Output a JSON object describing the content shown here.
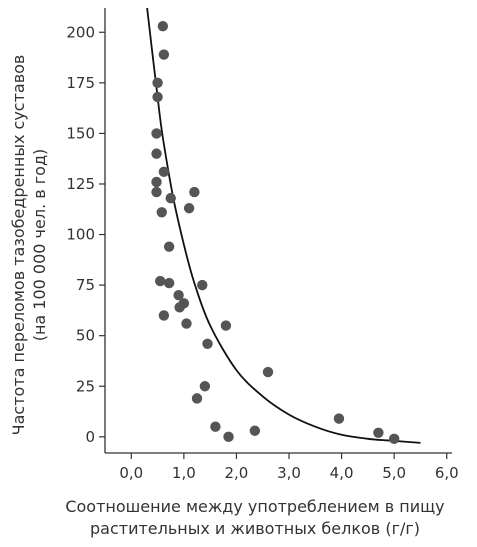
{
  "chart_data": {
    "type": "scatter",
    "xlabel": [
      "Соотношение между употреблением в пищу",
      "растительных и животных белков (г/г)"
    ],
    "ylabel": [
      "Частота переломов тазобедренных суставов",
      "(на 100 000 чел. в год)"
    ],
    "xlim": [
      -0.5,
      6.1
    ],
    "ylim": [
      -8,
      212
    ],
    "x_ticks": [
      "0,0",
      "1,0",
      "2,0",
      "3,0",
      "4,0",
      "5,0",
      "6,0"
    ],
    "y_ticks": [
      "0",
      "25",
      "50",
      "75",
      "100",
      "125",
      "150",
      "175",
      "200"
    ],
    "x_tick_values": [
      0,
      1,
      2,
      3,
      4,
      5,
      6
    ],
    "y_tick_values": [
      0,
      25,
      50,
      75,
      100,
      125,
      150,
      175,
      200
    ],
    "points": [
      {
        "x": 0.6,
        "y": 203
      },
      {
        "x": 0.62,
        "y": 189
      },
      {
        "x": 0.5,
        "y": 175
      },
      {
        "x": 0.5,
        "y": 168
      },
      {
        "x": 0.48,
        "y": 150
      },
      {
        "x": 0.48,
        "y": 140
      },
      {
        "x": 0.62,
        "y": 131
      },
      {
        "x": 0.48,
        "y": 126
      },
      {
        "x": 0.48,
        "y": 121
      },
      {
        "x": 1.2,
        "y": 121
      },
      {
        "x": 0.75,
        "y": 118
      },
      {
        "x": 1.1,
        "y": 113
      },
      {
        "x": 0.58,
        "y": 111
      },
      {
        "x": 0.72,
        "y": 94
      },
      {
        "x": 0.55,
        "y": 77
      },
      {
        "x": 0.72,
        "y": 76
      },
      {
        "x": 1.35,
        "y": 75
      },
      {
        "x": 0.9,
        "y": 70
      },
      {
        "x": 1.0,
        "y": 66
      },
      {
        "x": 0.92,
        "y": 64
      },
      {
        "x": 0.62,
        "y": 60
      },
      {
        "x": 1.05,
        "y": 56
      },
      {
        "x": 1.8,
        "y": 55
      },
      {
        "x": 1.45,
        "y": 46
      },
      {
        "x": 2.6,
        "y": 32
      },
      {
        "x": 1.4,
        "y": 25
      },
      {
        "x": 1.25,
        "y": 19
      },
      {
        "x": 3.95,
        "y": 9
      },
      {
        "x": 1.6,
        "y": 5
      },
      {
        "x": 2.35,
        "y": 3
      },
      {
        "x": 4.7,
        "y": 2
      },
      {
        "x": 1.85,
        "y": 0
      },
      {
        "x": 5.0,
        "y": -1
      }
    ],
    "trend_curve": [
      {
        "x": 0.3,
        "y": 212
      },
      {
        "x": 0.4,
        "y": 190
      },
      {
        "x": 0.5,
        "y": 168
      },
      {
        "x": 0.6,
        "y": 148
      },
      {
        "x": 0.8,
        "y": 118
      },
      {
        "x": 1.0,
        "y": 95
      },
      {
        "x": 1.2,
        "y": 76
      },
      {
        "x": 1.5,
        "y": 55
      },
      {
        "x": 2.0,
        "y": 33
      },
      {
        "x": 2.5,
        "y": 20
      },
      {
        "x": 3.0,
        "y": 11
      },
      {
        "x": 3.5,
        "y": 5
      },
      {
        "x": 4.0,
        "y": 1
      },
      {
        "x": 4.5,
        "y": -1
      },
      {
        "x": 5.0,
        "y": -2
      },
      {
        "x": 5.5,
        "y": -3
      }
    ],
    "grid": false,
    "colors": {
      "points": "#555555",
      "curve": "#111111",
      "axes": "#333333",
      "text": "#333333"
    }
  }
}
